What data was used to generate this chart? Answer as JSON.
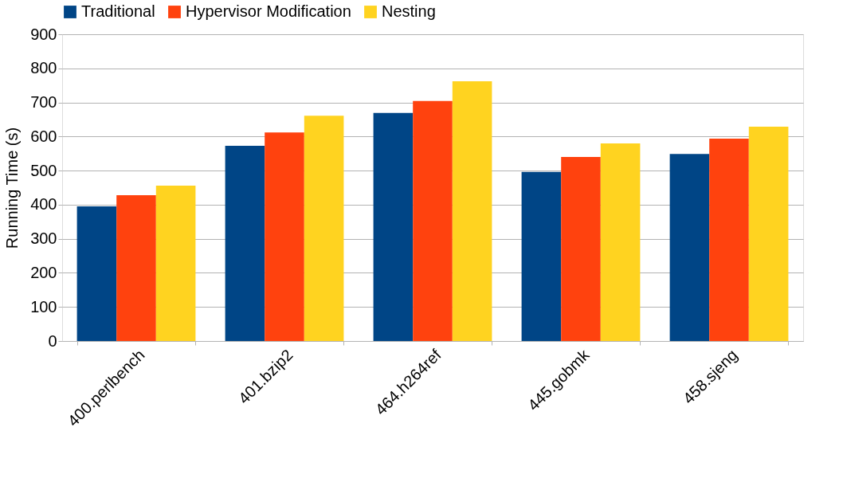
{
  "chart_data": {
    "type": "bar",
    "ylabel": "Running Time (s)",
    "categories": [
      "400.perlbench",
      "401.bzip2",
      "464.h264ref",
      "445.gobmk",
      "458.sjeng"
    ],
    "series": [
      {
        "name": "Traditional",
        "color": "#004586",
        "values": [
          395,
          573,
          669,
          496,
          549
        ]
      },
      {
        "name": "Hypervisor Modification",
        "color": "#ff420e",
        "values": [
          428,
          612,
          704,
          540,
          594
        ]
      },
      {
        "name": "Nesting",
        "color": "#ffd320",
        "values": [
          456,
          661,
          762,
          580,
          629
        ]
      }
    ],
    "ylim": [
      0,
      900
    ],
    "yticks": [
      0,
      100,
      200,
      300,
      400,
      500,
      600,
      700,
      800,
      900
    ],
    "grid": "y",
    "legend": "top"
  }
}
